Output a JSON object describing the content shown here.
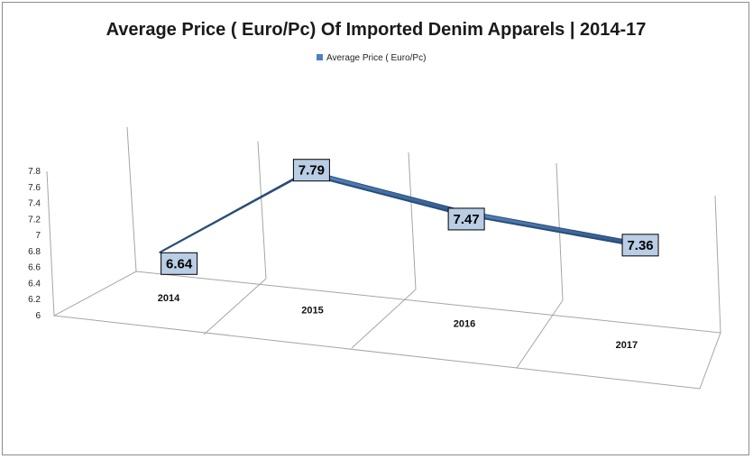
{
  "chart_data": {
    "type": "line",
    "title": "Average Price ( Euro/Pc) Of Imported Denim Apparels | 2014-17",
    "categories": [
      "2014",
      "2015",
      "2016",
      "2017"
    ],
    "series": [
      {
        "name": "Average Price ( Euro/Pc)",
        "values": [
          6.64,
          7.79,
          7.47,
          7.36
        ]
      }
    ],
    "data_labels": [
      "6.64",
      "7.79",
      "7.47",
      "7.36"
    ],
    "yticks": [
      "6",
      "6.2",
      "6.4",
      "6.6",
      "6.8",
      "7",
      "7.2",
      "7.4",
      "7.6",
      "7.8"
    ],
    "ylim": [
      6,
      7.8
    ],
    "grid": true,
    "legend": "top-center",
    "style": "3d-line",
    "colors": {
      "series": "#4f81bd",
      "series_dark": "#2a4d78",
      "label_fill": "#b9cde5",
      "grid": "#a6a6a6"
    }
  }
}
